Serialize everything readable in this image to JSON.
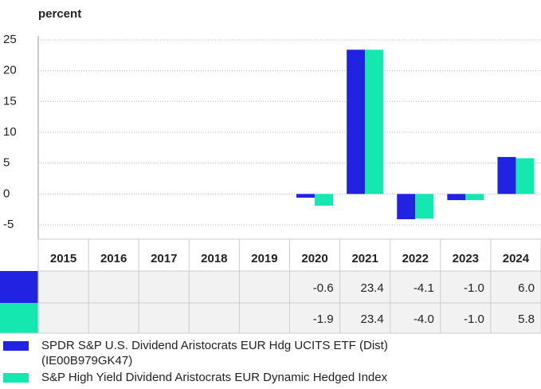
{
  "chart_data": {
    "type": "bar",
    "y_label": "percent",
    "categories": [
      "2015",
      "2016",
      "2017",
      "2018",
      "2019",
      "2020",
      "2021",
      "2022",
      "2023",
      "2024"
    ],
    "series": [
      {
        "name": "SPDR S&P U.S. Dividend Aristocrats EUR Hdg UCITS ETF (Dist) (IE00B979GK47)",
        "color": "#2222e3",
        "values": [
          null,
          null,
          null,
          null,
          null,
          -0.6,
          23.4,
          -4.1,
          -1.0,
          6.0
        ],
        "value_labels": [
          null,
          null,
          null,
          null,
          null,
          "-0.6",
          "23.4",
          "-4.1",
          "-1.0",
          "6.0"
        ]
      },
      {
        "name": "S&P High Yield Dividend Aristocrats EUR Dynamic Hedged Index",
        "color": "#14e8b0",
        "values": [
          null,
          null,
          null,
          null,
          null,
          -1.9,
          23.4,
          -4.0,
          -1.0,
          5.8
        ],
        "value_labels": [
          null,
          null,
          null,
          null,
          null,
          "-1.9",
          "23.4",
          "-4.0",
          "-1.0",
          "5.8"
        ]
      }
    ],
    "ylim": [
      -5,
      25
    ],
    "yticks": [
      -5,
      0,
      5,
      10,
      15,
      20,
      25
    ],
    "grid": true
  }
}
